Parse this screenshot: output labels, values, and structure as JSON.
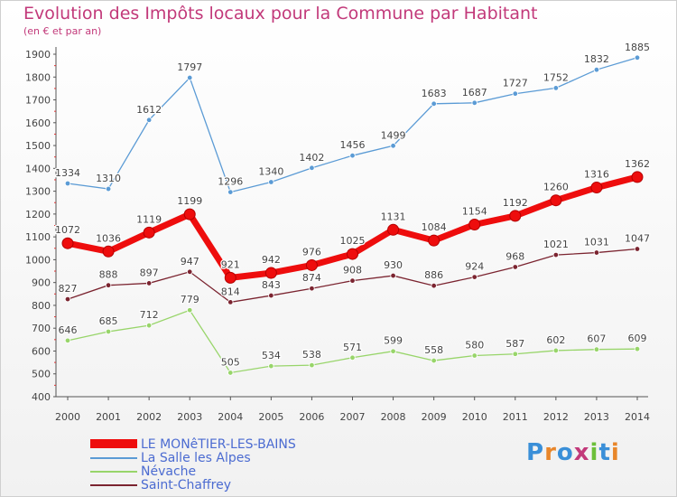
{
  "header": {
    "title": "Evolution des Impôts locaux pour la Commune par Habitant",
    "subtitle": "(en € et par an)"
  },
  "brand": {
    "text": "Proxiti"
  },
  "colors": {
    "title": "#c2397a",
    "legend_text": "#4b6bd1",
    "axis": "#555555"
  },
  "chart_data": {
    "type": "line",
    "title": "Evolution des Impôts locaux pour la Commune par Habitant",
    "subtitle": "(en € et par an)",
    "xlabel": "",
    "ylabel": "",
    "ylim": [
      400,
      1900
    ],
    "yticks": [
      "400",
      "500",
      "600",
      "700",
      "800",
      "900",
      "1000",
      "1100",
      "1200",
      "1300",
      "1400",
      "1500",
      "1600",
      "1700",
      "1800",
      "1900"
    ],
    "categories": [
      "2000",
      "2001",
      "2002",
      "2003",
      "2004",
      "2005",
      "2006",
      "2007",
      "2008",
      "2009",
      "2010",
      "2011",
      "2012",
      "2013",
      "2014"
    ],
    "series": [
      {
        "name": "LE MONêTIER-LES-BAINS",
        "color": "#ee0d0d",
        "emphasis": true,
        "values": [
          1072,
          1036,
          1119,
          1199,
          921,
          942,
          976,
          1025,
          1131,
          1084,
          1154,
          1192,
          1260,
          1316,
          1362
        ],
        "labels": [
          "1072",
          "1036",
          "1119",
          "1199",
          "921",
          "942",
          "976",
          "1025",
          "1131",
          "1084",
          "1154",
          "1192",
          "1260",
          "1316",
          "1362"
        ]
      },
      {
        "name": "La Salle les Alpes",
        "color": "#5b9bd5",
        "emphasis": false,
        "values": [
          1334,
          1310,
          1612,
          1797,
          1296,
          1340,
          1402,
          1456,
          1499,
          1683,
          1687,
          1727,
          1752,
          1832,
          1885
        ],
        "labels": [
          "1334",
          "1310",
          "1612",
          "1797",
          "1296",
          "1340",
          "1402",
          "1456",
          "1499",
          "1683",
          "1687",
          "1727",
          "1752",
          "1832",
          "1885"
        ]
      },
      {
        "name": "Névache",
        "color": "#98d56a",
        "emphasis": false,
        "values": [
          646,
          685,
          712,
          779,
          505,
          534,
          538,
          571,
          599,
          558,
          580,
          587,
          602,
          607,
          609
        ],
        "labels": [
          "646",
          "685",
          "712",
          "779",
          "505",
          "534",
          "538",
          "571",
          "599",
          "558",
          "580",
          "587",
          "602",
          "607",
          "609"
        ]
      },
      {
        "name": "Saint-Chaffrey",
        "color": "#7b2430",
        "emphasis": false,
        "values": [
          827,
          888,
          897,
          947,
          814,
          843,
          874,
          908,
          930,
          886,
          924,
          968,
          1021,
          1031,
          1047
        ],
        "labels": [
          "827",
          "888",
          "897",
          "947",
          "814",
          "843",
          "874",
          "908",
          "930",
          "886",
          "924",
          "968",
          "1021",
          "1031",
          "1047"
        ]
      }
    ],
    "legend": [
      "LE MONêTIER-LES-BAINS",
      "La Salle les Alpes",
      "Névache",
      "Saint-Chaffrey"
    ],
    "legend_position": "bottom-left",
    "grid": false
  }
}
